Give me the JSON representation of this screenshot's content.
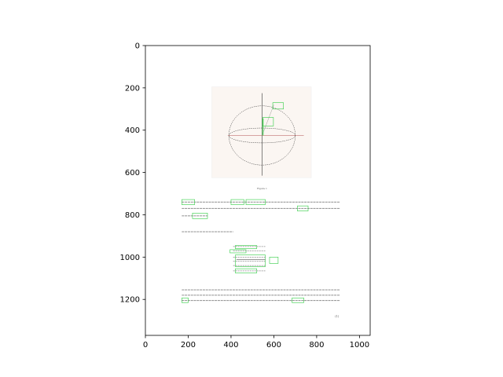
{
  "chart_data": {
    "type": "image",
    "title": "",
    "xlabel": "",
    "ylabel": "",
    "xlim": [
      0,
      1050
    ],
    "ylim": [
      1370,
      0
    ],
    "y_inverted": true,
    "xticks": [
      0,
      200,
      400,
      600,
      800,
      1000
    ],
    "yticks": [
      0,
      200,
      400,
      600,
      800,
      1000,
      1200
    ],
    "grid": false,
    "legend": null,
    "image_content": {
      "figure_caption": "Figure 1",
      "paragraph_1": "Dividing by ... and ... gives, after the previous relations, the ... and ... for ...",
      "paragraph_2": "Straightforward algebra,",
      "paragraph_3": "This shows that the ... frequency must be the ... and the width ... the ... of the ... for the ... and the ... of the ... to ... and ...",
      "page_number": "(1)",
      "highlight_color": "#2ecc40"
    }
  }
}
